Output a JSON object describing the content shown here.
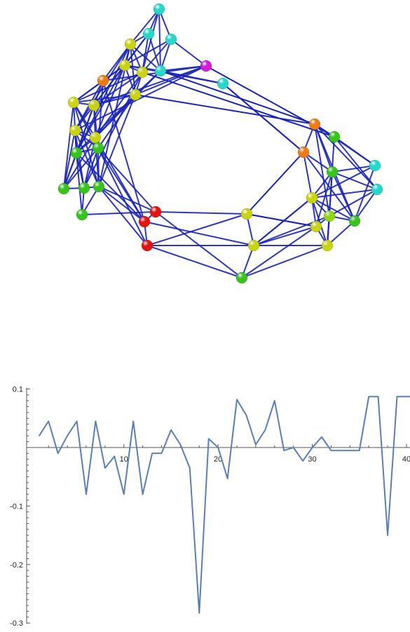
{
  "graph": {
    "node_colors": {
      "red": "#e3140f",
      "orange": "#ee7a13",
      "yellow": "#c9d40f",
      "lime": "#8fd611",
      "green": "#37c41b",
      "cyan": "#27d8c8",
      "magenta": "#d21fd6"
    },
    "edge_color": "#1a25b8"
  },
  "chart_data": {
    "type": "line",
    "title": "",
    "xlabel": "",
    "ylabel": "",
    "xlim": [
      1,
      41
    ],
    "ylim": [
      -0.3,
      0.1
    ],
    "x_ticks": [
      10,
      20,
      30,
      40
    ],
    "y_ticks": [
      0.1,
      -0.1,
      -0.2,
      -0.3
    ],
    "x_tick_labels": [
      "10",
      "20",
      "30",
      "40"
    ],
    "y_tick_labels": [
      "0.1",
      "-0.1",
      "-0.2",
      "-0.3"
    ],
    "line_color": "#5a7fb5",
    "x": [
      1,
      2,
      3,
      4,
      5,
      6,
      7,
      8,
      9,
      10,
      11,
      12,
      13,
      14,
      15,
      16,
      17,
      18,
      19,
      20,
      21,
      22,
      23,
      24,
      25,
      26,
      27,
      28,
      29,
      30,
      31,
      32,
      33,
      34,
      35,
      36,
      37,
      38,
      39,
      40,
      41
    ],
    "series": [
      {
        "values": [
          0.02,
          0.045,
          -0.01,
          0.02,
          0.045,
          -0.08,
          0.045,
          -0.035,
          -0.015,
          -0.08,
          0.045,
          -0.08,
          -0.01,
          -0.01,
          0.03,
          0.005,
          -0.035,
          -0.283,
          0.015,
          0.0,
          -0.053,
          0.082,
          0.055,
          0.005,
          0.03,
          0.08,
          -0.005,
          0.0,
          -0.023,
          0.0,
          0.018,
          -0.005,
          -0.005,
          -0.005,
          -0.005,
          0.087,
          0.087,
          -0.15,
          0.087,
          0.087,
          0.087
        ]
      }
    ]
  }
}
